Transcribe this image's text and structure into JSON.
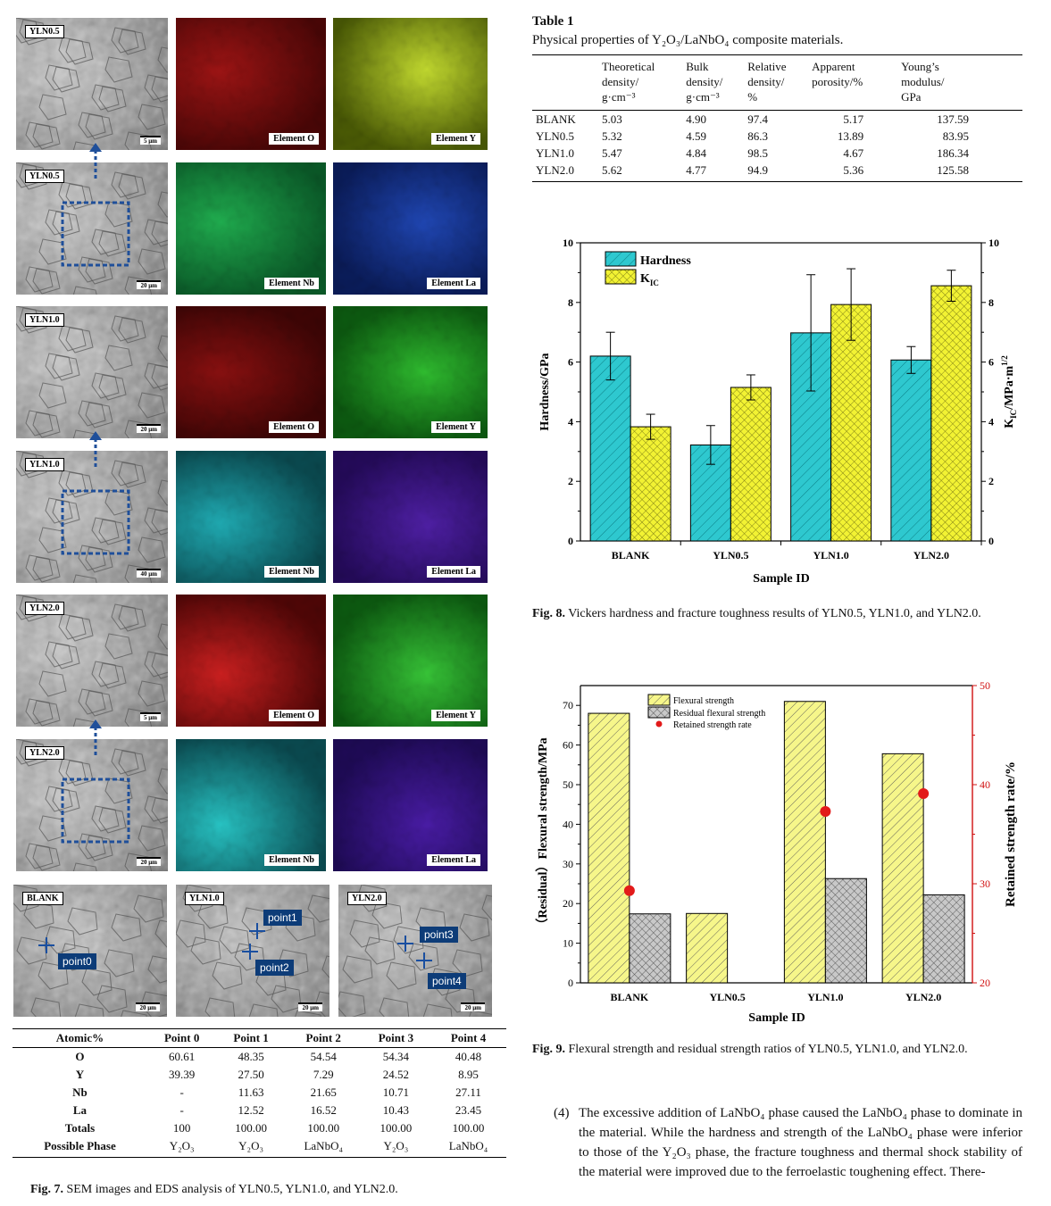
{
  "fig7": {
    "panels": [
      {
        "label": "YLN0.5",
        "scale": "5 μm",
        "maps": [
          "Element O",
          "Element Y"
        ]
      },
      {
        "label": "YLN0.5",
        "scale": "20 μm",
        "maps": [
          "Element Nb",
          "Element La"
        ]
      },
      {
        "label": "YLN1.0",
        "scale": "20 μm",
        "maps": [
          "Element O",
          "Element Y"
        ]
      },
      {
        "label": "YLN1.0",
        "scale": "40 μm",
        "maps": [
          "Element Nb",
          "Element La"
        ]
      },
      {
        "label": "YLN2.0",
        "scale": "5 μm",
        "maps": [
          "Element O",
          "Element Y"
        ]
      },
      {
        "label": "YLN2.0",
        "scale": "20 μm",
        "maps": [
          "Element Nb",
          "Element La"
        ]
      }
    ],
    "point_panels": [
      {
        "label": "BLANK",
        "scale": "20 μm",
        "points": [
          "point0"
        ]
      },
      {
        "label": "YLN1.0",
        "scale": "20 μm",
        "points": [
          "point1",
          "point2"
        ]
      },
      {
        "label": "YLN2.0",
        "scale": "20 μm",
        "points": [
          "point3",
          "point4"
        ]
      }
    ],
    "eds_table": {
      "headers": [
        "Atomic%",
        "Point 0",
        "Point 1",
        "Point 2",
        "Point 3",
        "Point 4"
      ],
      "rows": [
        [
          "O",
          "60.61",
          "48.35",
          "54.54",
          "54.34",
          "40.48"
        ],
        [
          "Y",
          "39.39",
          "27.50",
          "7.29",
          "24.52",
          "8.95"
        ],
        [
          "Nb",
          "-",
          "11.63",
          "21.65",
          "10.71",
          "27.11"
        ],
        [
          "La",
          "-",
          "12.52",
          "16.52",
          "10.43",
          "23.45"
        ],
        [
          "Totals",
          "100",
          "100.00",
          "100.00",
          "100.00",
          "100.00"
        ],
        [
          "Possible Phase",
          "Y₂O₃",
          "Y₂O₃",
          "LaNbO₄",
          "Y₂O₃",
          "LaNbO₄"
        ]
      ]
    },
    "caption_label": "Fig. 7.",
    "caption_text": "SEM images and EDS analysis of YLN0.5, YLN1.0, and YLN2.0."
  },
  "table1": {
    "label": "Table 1",
    "title": "Physical properties of Y₂O₃/LaNbO₄ composite materials.",
    "headers": [
      "",
      "Theoretical density/ g·cm⁻³",
      "Bulk density/ g·cm⁻³",
      "Relative density/ %",
      "Apparent porosity/%",
      "Young’s modulus/ GPa"
    ],
    "rows": [
      [
        "BLANK",
        "5.03",
        "4.90",
        "97.4",
        "5.17",
        "137.59"
      ],
      [
        "YLN0.5",
        "5.32",
        "4.59",
        "86.3",
        "13.89",
        "83.95"
      ],
      [
        "YLN1.0",
        "5.47",
        "4.84",
        "98.5",
        "4.67",
        "186.34"
      ],
      [
        "YLN2.0",
        "5.62",
        "4.77",
        "94.9",
        "5.36",
        "125.58"
      ]
    ]
  },
  "fig8": {
    "caption_label": "Fig. 8.",
    "caption_text": "Vickers hardness and fracture toughness results of YLN0.5, YLN1.0, and YLN2.0."
  },
  "fig9": {
    "caption_label": "Fig. 9.",
    "caption_text": "Flexural strength and residual strength ratios of YLN0.5, YLN1.0, and YLN2.0."
  },
  "paragraph": {
    "marker": "(4)",
    "text": "The excessive addition of LaNbO₄ phase caused the LaNbO₄ phase to dominate in the material. While the hardness and strength of the LaNbO₄ phase were inferior to those of the Y₂O₃ phase, the fracture toughness and thermal shock stability of the material were improved due to the ferroelastic toughening effect. There-"
  },
  "chart_data": [
    {
      "type": "bar",
      "title": "",
      "xlabel": "Sample ID",
      "ylabel": "Hardness/GPa",
      "y2label": "K_IC/MPa·m^1/2",
      "categories": [
        "BLANK",
        "YLN0.5",
        "YLN1.0",
        "YLN2.0"
      ],
      "ylim": [
        0,
        10
      ],
      "y2lim": [
        0,
        10
      ],
      "yticks": [
        "0",
        "2",
        "4",
        "6",
        "8",
        "10"
      ],
      "legend_position": "top-left",
      "series": [
        {
          "name": "Hardness",
          "values": [
            6.2,
            3.22,
            6.98,
            6.07
          ],
          "errors": [
            0.8,
            0.65,
            1.95,
            0.45
          ],
          "color": "#2ec8cf"
        },
        {
          "name": "K_IC",
          "values": [
            3.83,
            5.15,
            7.93,
            8.56
          ],
          "errors": [
            0.42,
            0.42,
            1.2,
            0.52
          ],
          "color": "#f2f233"
        }
      ]
    },
    {
      "type": "bar",
      "title": "",
      "xlabel": "Sample ID",
      "ylabel": "（Residual）Flexural strength/MPa",
      "y2label": "Retained strength rate/%",
      "categories": [
        "BLANK",
        "YLN0.5",
        "YLN1.0",
        "YLN2.0"
      ],
      "ylim": [
        0,
        75
      ],
      "y2lim": [
        20,
        50
      ],
      "yticks": [
        "0",
        "10",
        "20",
        "30",
        "40",
        "50",
        "60",
        "70"
      ],
      "y2ticks": [
        "20",
        "30",
        "40",
        "50"
      ],
      "legend_position": "top-left",
      "series": [
        {
          "name": "Flexural strength",
          "values": [
            68,
            17.5,
            71,
            57.8
          ],
          "color": "#f2f27a"
        },
        {
          "name": "Residual flexural strength",
          "values": [
            17.4,
            0,
            26.3,
            22.2
          ],
          "color": "#b8b8b8"
        },
        {
          "name": "Retained strength rate",
          "values": [
            29.3,
            null,
            37.3,
            39.1
          ],
          "color": "#e21a1a",
          "axis": "right"
        }
      ]
    }
  ]
}
